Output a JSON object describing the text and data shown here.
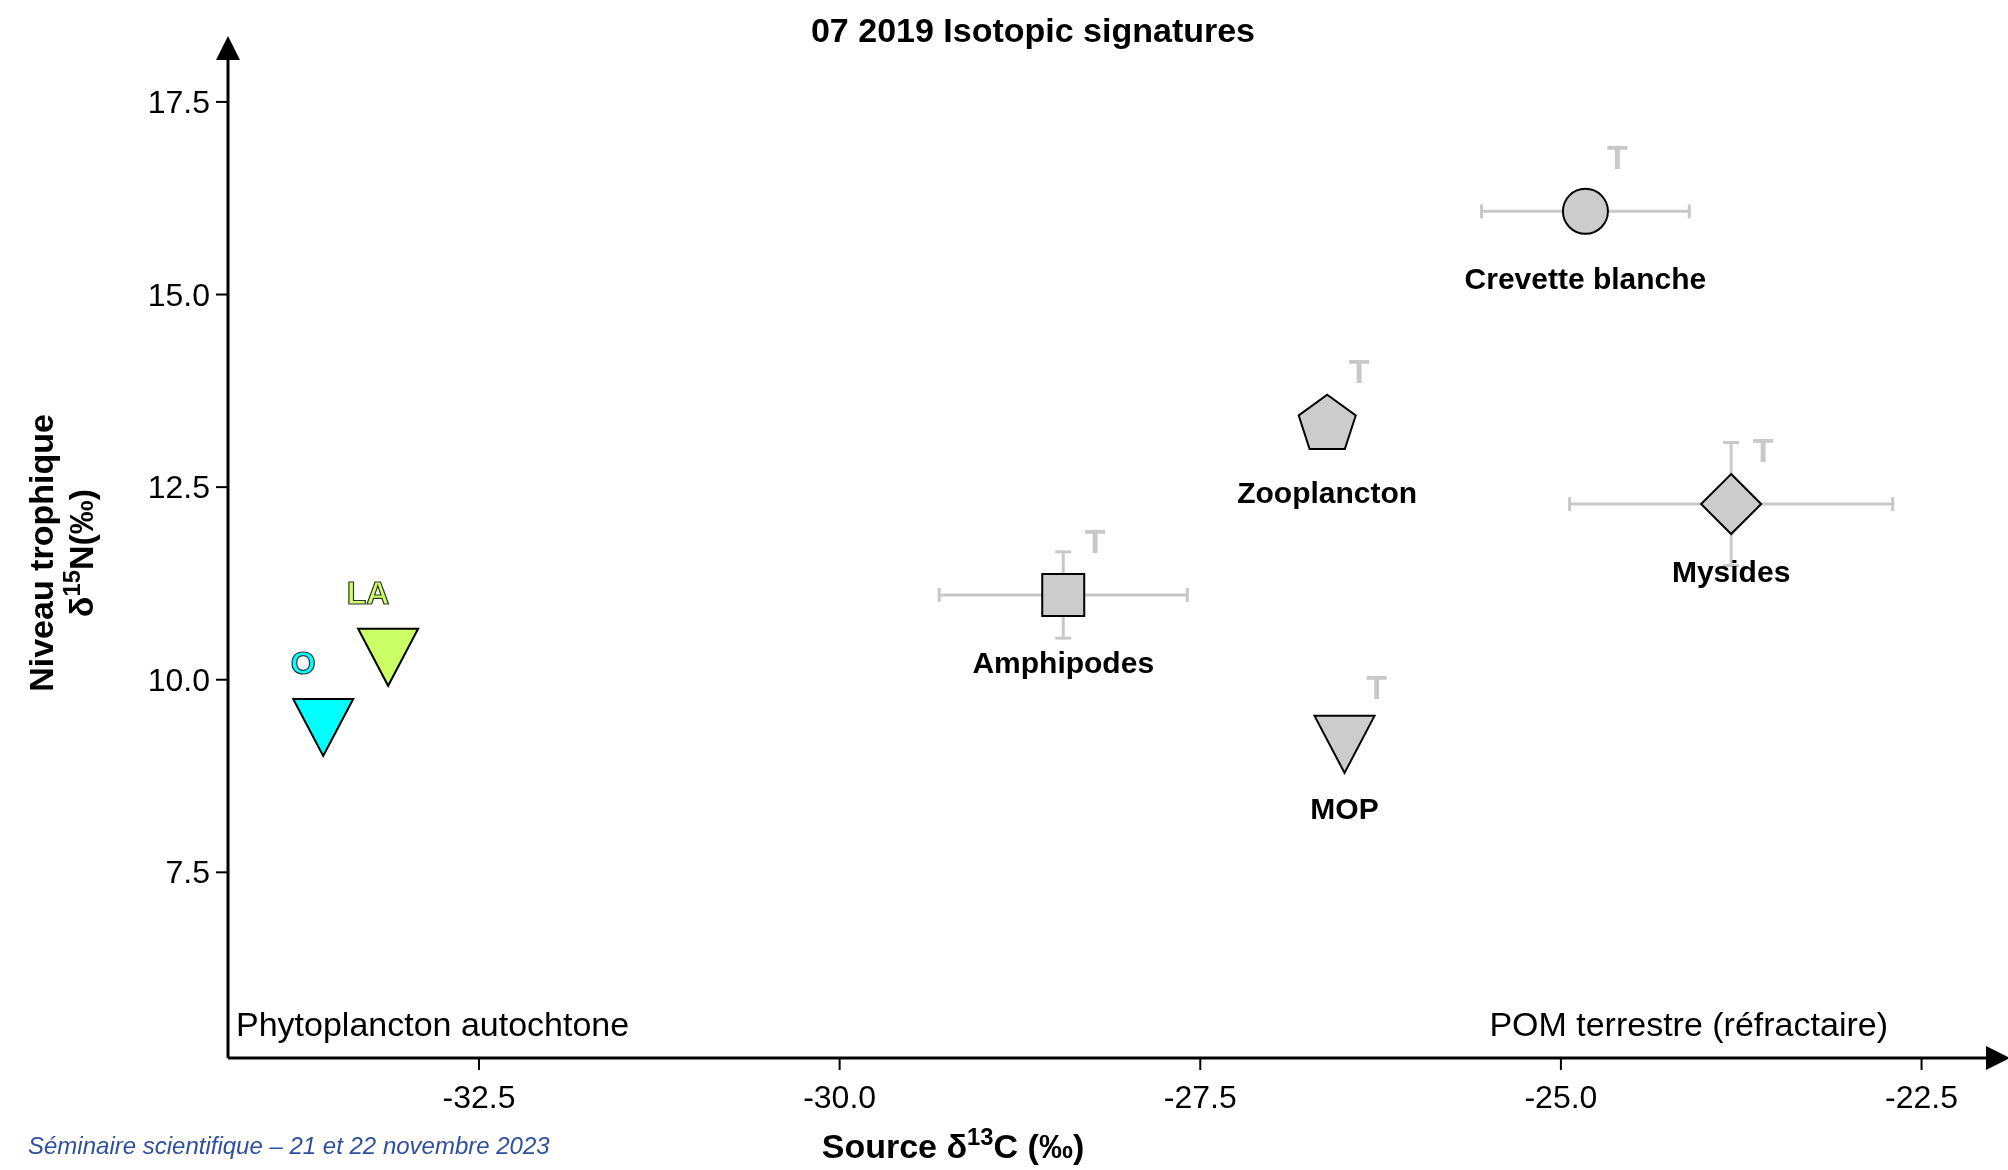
{
  "chart_data": {
    "type": "scatter",
    "title": "07 2019 Isotopic signatures",
    "xlabel": "Source δ$^{13}$C (‰)",
    "ylabel": "Niveau trophique\nδ$^{15}$N(‰)",
    "xlim": [
      -34.24,
      -21.97
    ],
    "ylim": [
      5.09,
      18.2
    ],
    "xticks": [
      {
        "value": -32.5,
        "label": "-32.5"
      },
      {
        "value": -30,
        "label": "-30.0"
      },
      {
        "value": -27.5,
        "label": "-27.5"
      },
      {
        "value": -25,
        "label": "-25.0"
      },
      {
        "value": -22.5,
        "label": "-22.5"
      }
    ],
    "yticks": [
      {
        "value": 7.5,
        "label": "7.5"
      },
      {
        "value": 10,
        "label": "10.0"
      },
      {
        "value": 12.5,
        "label": "12.5"
      },
      {
        "value": 15,
        "label": "15.0"
      },
      {
        "value": 17.5,
        "label": "17.5"
      }
    ],
    "grid": false,
    "series": [
      {
        "name": "O",
        "color": "#00ffff",
        "marker": "triangle",
        "x": [
          -33.58
        ],
        "values": [
          9.42
        ]
      },
      {
        "name": "LA",
        "color": "#ccff66",
        "marker": "triangle",
        "x": [
          -33.13
        ],
        "values": [
          10.33
        ]
      },
      {
        "name": "Amphipodes",
        "color": "#cccccc",
        "marker": "square",
        "x": [
          -28.45
        ],
        "values": [
          11.1
        ],
        "errors": [
          0.56
        ],
        "xerrors": [
          0.86
        ]
      },
      {
        "name": "Zooplancton",
        "color": "#cccccc",
        "x": [
          -26.62
        ],
        "values": [
          13.31
        ]
      },
      {
        "name": "Crevette blanche",
        "color": "#cccccc",
        "marker": "circle",
        "x": [
          -24.83
        ],
        "values": [
          16.08
        ],
        "xerrors": [
          0.72
        ]
      },
      {
        "name": "Mysides",
        "color": "#cccccc",
        "marker": "diamond",
        "x": [
          -23.82
        ],
        "values": [
          12.28
        ],
        "errors": [
          0.8
        ],
        "xerrors": [
          1.12
        ]
      },
      {
        "name": "MOP",
        "color": "#cccccc",
        "marker": "triangle",
        "x": [
          -26.5
        ],
        "values": [
          9.2
        ]
      }
    ],
    "annotations": [
      "Phytoplancton autochtone",
      "POM terrestre (réfractaire)",
      "Séminaire scientifique – 21 et 22 novembre 2023",
      "T",
      "T",
      "T",
      "T",
      "T"
    ]
  }
}
